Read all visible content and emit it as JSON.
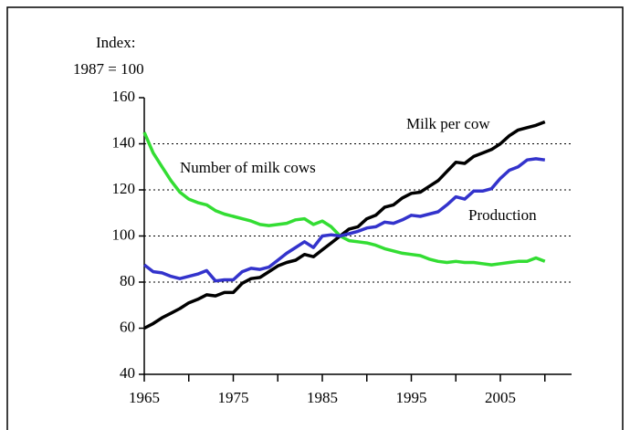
{
  "chart_data": {
    "type": "line",
    "y_label": [
      "Index:",
      "1987 = 100"
    ],
    "x": [
      1965,
      1966,
      1967,
      1968,
      1969,
      1970,
      1971,
      1972,
      1973,
      1974,
      1975,
      1976,
      1977,
      1978,
      1979,
      1980,
      1981,
      1982,
      1983,
      1984,
      1985,
      1986,
      1987,
      1988,
      1989,
      1990,
      1991,
      1992,
      1993,
      1994,
      1995,
      1996,
      1997,
      1998,
      1999,
      2000,
      2001,
      2002,
      2003,
      2004,
      2005,
      2006,
      2007,
      2008,
      2009,
      2010
    ],
    "series": [
      {
        "name": "Milk per cow",
        "color": "#000000",
        "values": [
          60,
          62,
          64.5,
          66.5,
          68.5,
          71,
          72.5,
          74.5,
          74,
          75.5,
          75.5,
          79.5,
          81.5,
          82,
          84.5,
          87,
          88.5,
          89.5,
          92,
          91,
          94,
          97,
          100,
          103,
          104,
          107.5,
          109,
          112.5,
          113.5,
          116.5,
          118.5,
          119,
          121.5,
          124,
          128,
          132,
          131.5,
          134.5,
          136,
          137.5,
          140,
          143.5,
          146,
          147,
          148,
          149.5
        ]
      },
      {
        "name": "Number of milk cows",
        "color": "#33dd33",
        "values": [
          145,
          136,
          130,
          124,
          119,
          116,
          114.5,
          113.5,
          111,
          109.5,
          108.5,
          107.5,
          106.5,
          105,
          104.5,
          105,
          105.5,
          107,
          107.5,
          105,
          106.5,
          104,
          100,
          98,
          97.5,
          97,
          96,
          94.5,
          93.5,
          92.5,
          92,
          91.5,
          90,
          89,
          88.5,
          89,
          88.5,
          88.5,
          88,
          87.5,
          88,
          88.5,
          89,
          89,
          90.5,
          89
        ]
      },
      {
        "name": "Production",
        "color": "#3333cc",
        "values": [
          87.5,
          84.5,
          84,
          82.5,
          81.5,
          82.5,
          83.5,
          85,
          80.5,
          81,
          81,
          84.5,
          86,
          85.5,
          86.5,
          89.5,
          92.5,
          95,
          97.5,
          95,
          100,
          100.5,
          100,
          101,
          102,
          103.5,
          104,
          106,
          105.5,
          107,
          109,
          108.5,
          109.5,
          110.5,
          113.5,
          117,
          116,
          119.5,
          119.5,
          120.5,
          125,
          128.5,
          130,
          133,
          133.5,
          133
        ]
      }
    ],
    "xlim": [
      1965,
      2013
    ],
    "xticks": [
      1965,
      1975,
      1985,
      1995,
      2005
    ],
    "xminorticks": [
      1970,
      1980,
      1990,
      2000,
      2010
    ],
    "ylim": [
      40,
      160
    ],
    "yticks": [
      40,
      60,
      80,
      100,
      120,
      140,
      160
    ],
    "grid_lines": [
      80,
      100,
      120,
      140
    ]
  }
}
